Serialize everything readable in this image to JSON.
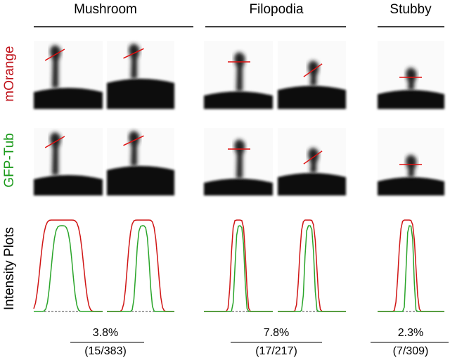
{
  "columns": [
    {
      "title": "Mushroom",
      "percent": "3.8%",
      "fraction": "(15/383)"
    },
    {
      "title": "Filopodia",
      "percent": "7.8%",
      "fraction": "(17/217)"
    },
    {
      "title": "Stubby",
      "percent": "2.3%",
      "fraction": "(7/309)"
    }
  ],
  "row_labels": [
    "mOrange",
    "GFP-Tub",
    "Intensity Plots"
  ]
}
